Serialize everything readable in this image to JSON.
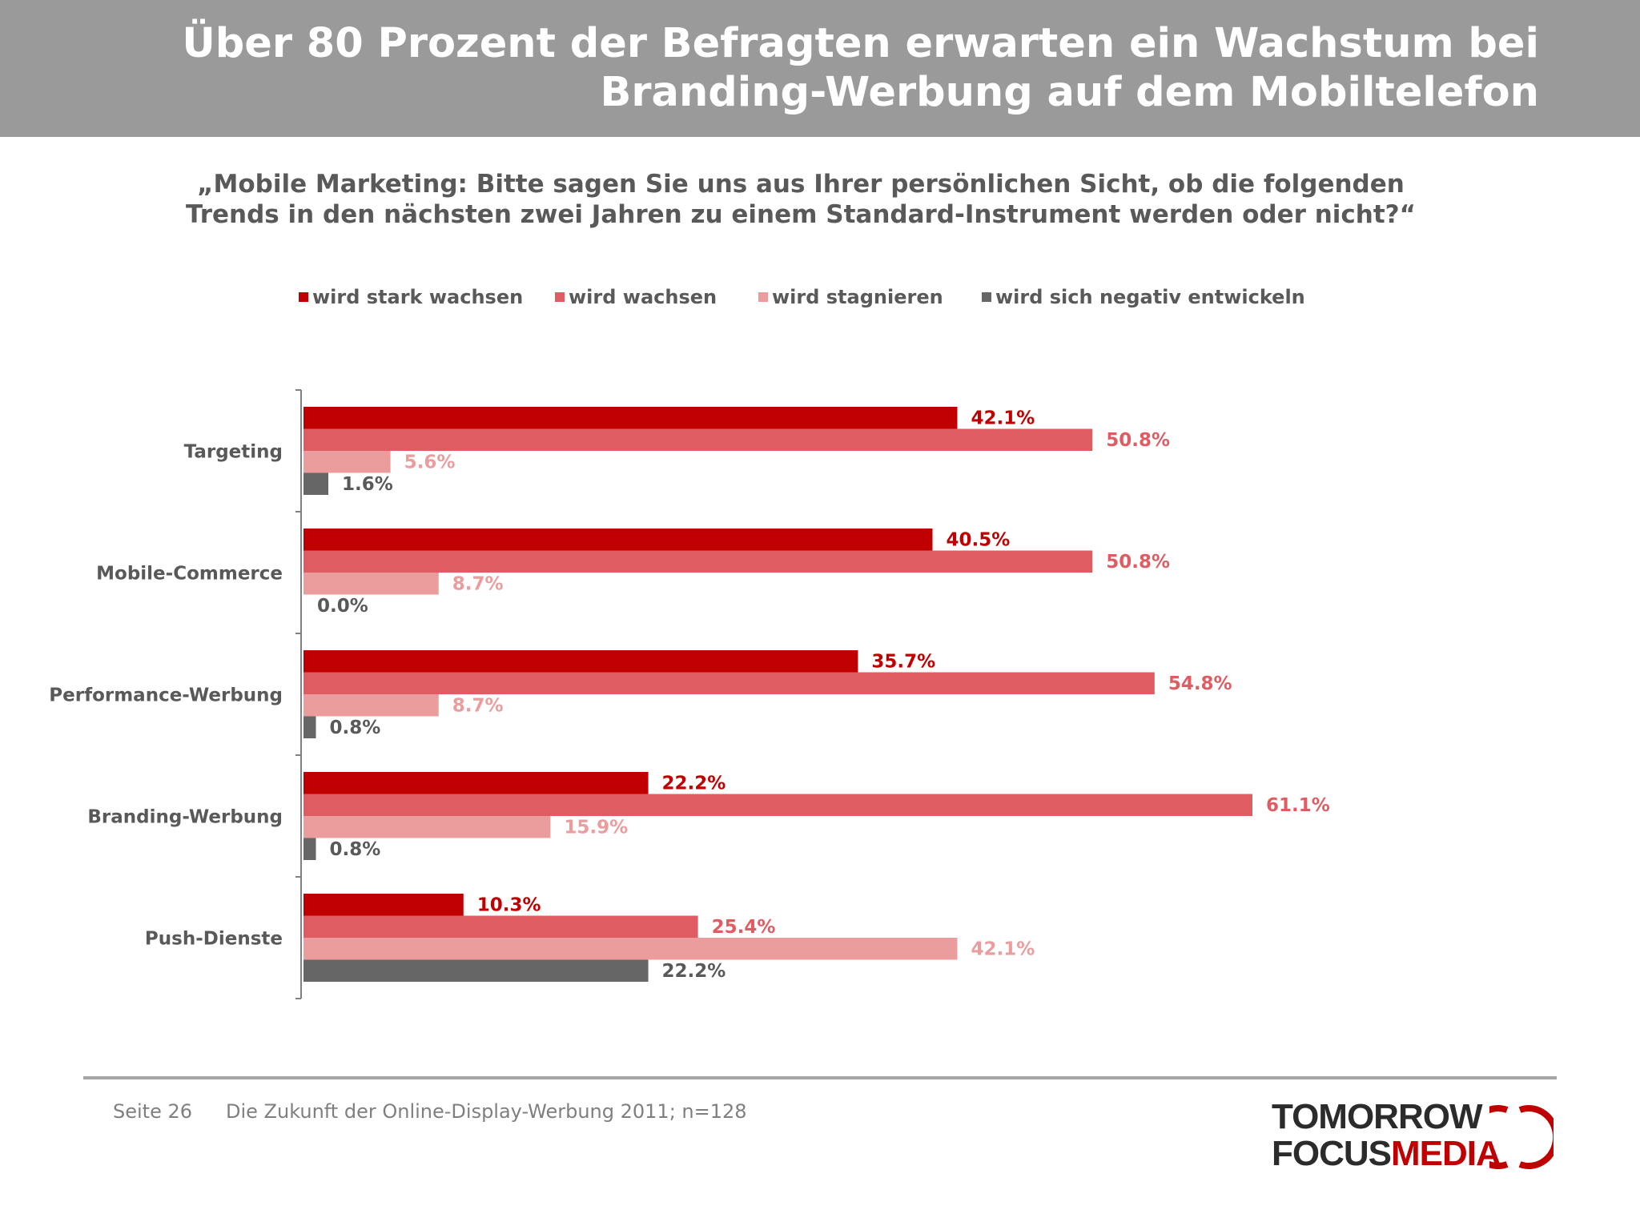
{
  "header": {
    "title_line1": "Über 80 Prozent der Befragten erwarten ein Wachstum bei",
    "title_line2": "Branding-Werbung auf dem Mobiltelefon"
  },
  "question": {
    "line1": "„Mobile Marketing: Bitte sagen Sie uns aus Ihrer persönlichen Sicht, ob die folgenden",
    "line2": "Trends in den nächsten zwei Jahren zu einem Standard-Instrument werden oder nicht?“"
  },
  "chart_data": {
    "type": "bar",
    "orientation": "horizontal",
    "categories": [
      "Targeting",
      "Mobile-Commerce",
      "Performance-Werbung",
      "Branding-Werbung",
      "Push-Dienste"
    ],
    "series": [
      {
        "name": "wird stark wachsen",
        "color": "#c00000",
        "values": [
          42.1,
          40.5,
          35.7,
          22.2,
          10.3
        ],
        "labels": [
          "42.1%",
          "40.5%",
          "35.7%",
          "22.2%",
          "10.3%"
        ]
      },
      {
        "name": "wird wachsen",
        "color": "#e05c63",
        "values": [
          50.8,
          50.8,
          54.8,
          61.1,
          25.4
        ],
        "labels": [
          "50.8%",
          "50.8%",
          "54.8%",
          "61.1%",
          "25.4%"
        ]
      },
      {
        "name": "wird stagnieren",
        "color": "#eb9c9c",
        "values": [
          5.6,
          8.7,
          8.7,
          15.9,
          42.1
        ],
        "labels": [
          "5.6%",
          "8.7%",
          "8.7%",
          "15.9%",
          "42.1%"
        ]
      },
      {
        "name": "wird sich negativ entwickeln",
        "color": "#666666",
        "values": [
          1.6,
          0.0,
          0.8,
          0.8,
          22.2
        ],
        "labels": [
          "1.6%",
          "0.0%",
          "0.8%",
          "0.8%",
          "22.2%"
        ]
      }
    ],
    "legend_position": "top",
    "grid": false,
    "xlim": [
      0,
      70
    ]
  },
  "footer": {
    "page": "Seite 26",
    "source": "Die Zukunft der Online-Display-Werbung 2011; n=128"
  },
  "logo": {
    "line1": "TOMORROW",
    "line2_a": "FOCUS",
    "line2_b": "MEDIA"
  }
}
